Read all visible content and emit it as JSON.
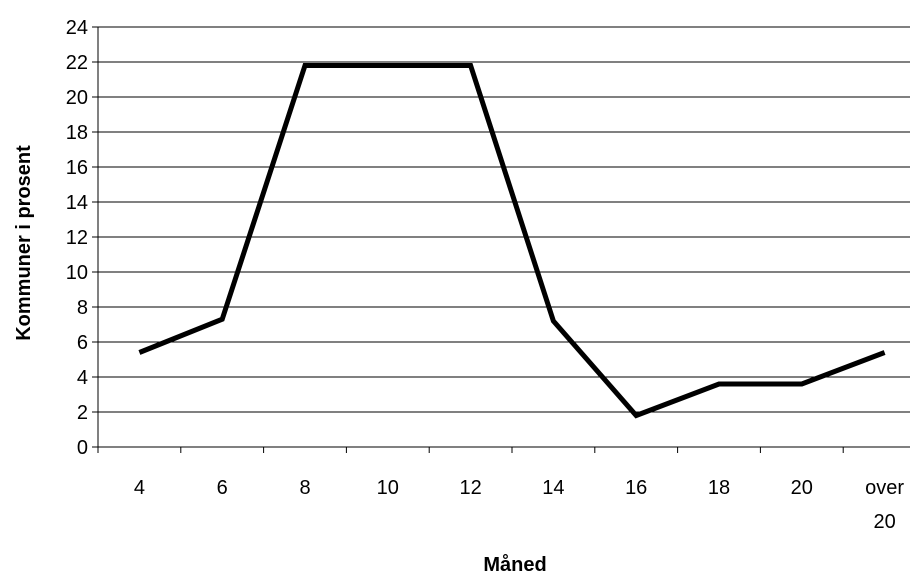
{
  "chart_data": {
    "type": "line",
    "xlabel": "Måned",
    "ylabel": "Kommuner i prosent",
    "categories": [
      "4",
      "6",
      "8",
      "10",
      "12",
      "14",
      "16",
      "18",
      "20",
      "over 20"
    ],
    "series": [
      {
        "values": [
          5.4,
          7.3,
          21.8,
          21.8,
          21.8,
          7.2,
          1.8,
          3.6,
          3.6,
          5.4
        ]
      }
    ],
    "ylim": [
      0,
      24
    ],
    "yticks": [
      0,
      2,
      4,
      6,
      8,
      10,
      12,
      14,
      16,
      18,
      20,
      22,
      24
    ],
    "grid": true,
    "line_color": "#000000"
  }
}
